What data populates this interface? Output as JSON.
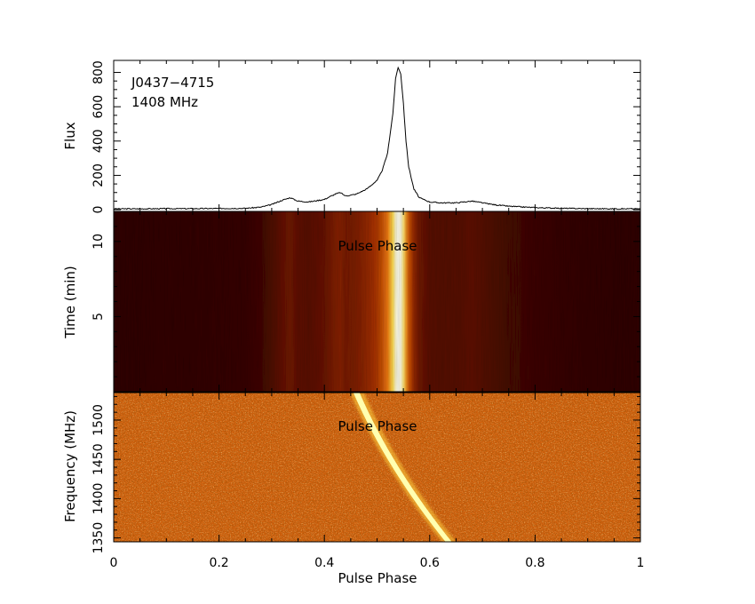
{
  "chart_data": [
    {
      "type": "line",
      "panel": "profile",
      "annotations": [
        "J0437−4715",
        "1408 MHz"
      ],
      "ylabel": "Flux",
      "yticks": [
        0,
        200,
        400,
        600,
        800
      ],
      "ylim": [
        -10,
        870
      ],
      "xlim": [
        0,
        1
      ],
      "x": [
        0,
        0.05,
        0.1,
        0.15,
        0.2,
        0.25,
        0.28,
        0.3,
        0.32,
        0.335,
        0.35,
        0.37,
        0.4,
        0.42,
        0.43,
        0.44,
        0.46,
        0.48,
        0.5,
        0.51,
        0.52,
        0.53,
        0.535,
        0.54,
        0.545,
        0.55,
        0.555,
        0.56,
        0.57,
        0.58,
        0.6,
        0.62,
        0.65,
        0.68,
        0.7,
        0.72,
        0.75,
        0.8,
        0.85,
        0.9,
        0.95,
        1.0
      ],
      "y": [
        5,
        5,
        6,
        6,
        7,
        8,
        15,
        30,
        55,
        70,
        50,
        45,
        60,
        90,
        100,
        80,
        90,
        120,
        170,
        230,
        330,
        560,
        760,
        830,
        790,
        620,
        400,
        250,
        120,
        70,
        45,
        40,
        40,
        50,
        40,
        30,
        20,
        12,
        8,
        6,
        5,
        5
      ]
    },
    {
      "type": "heatmap",
      "panel": "time-phase",
      "xlabel": "Pulse Phase",
      "ylabel": "Time (min)",
      "title": "Pulse Phase",
      "yticks": [
        5,
        10
      ],
      "ylim": [
        0,
        12
      ],
      "xlim": [
        0,
        1
      ],
      "colormap": [
        "#200000",
        "#5a0d00",
        "#a83200",
        "#f07a10",
        "#ffdc50",
        "#fffff0"
      ],
      "pulse_center_phase": 0.548
    },
    {
      "type": "heatmap",
      "panel": "frequency-phase",
      "xlabel": "Pulse Phase",
      "ylabel": "Frequency (MHz)",
      "title": "Pulse Phase",
      "yticks": [
        1350,
        1400,
        1450,
        1500
      ],
      "ylim": [
        1345,
        1535
      ],
      "xlim": [
        0,
        1
      ],
      "colormap": [
        "#c44a08",
        "#dd6e18",
        "#f0a040",
        "#ffdc60",
        "#ffffc0"
      ],
      "sweep": {
        "phase_at_top": 0.46,
        "phase_at_bottom": 0.635
      }
    }
  ],
  "x_axis": {
    "label": "Pulse Phase",
    "ticks": [
      "0",
      "0.2",
      "0.4",
      "0.6",
      "0.8",
      "1"
    ]
  }
}
